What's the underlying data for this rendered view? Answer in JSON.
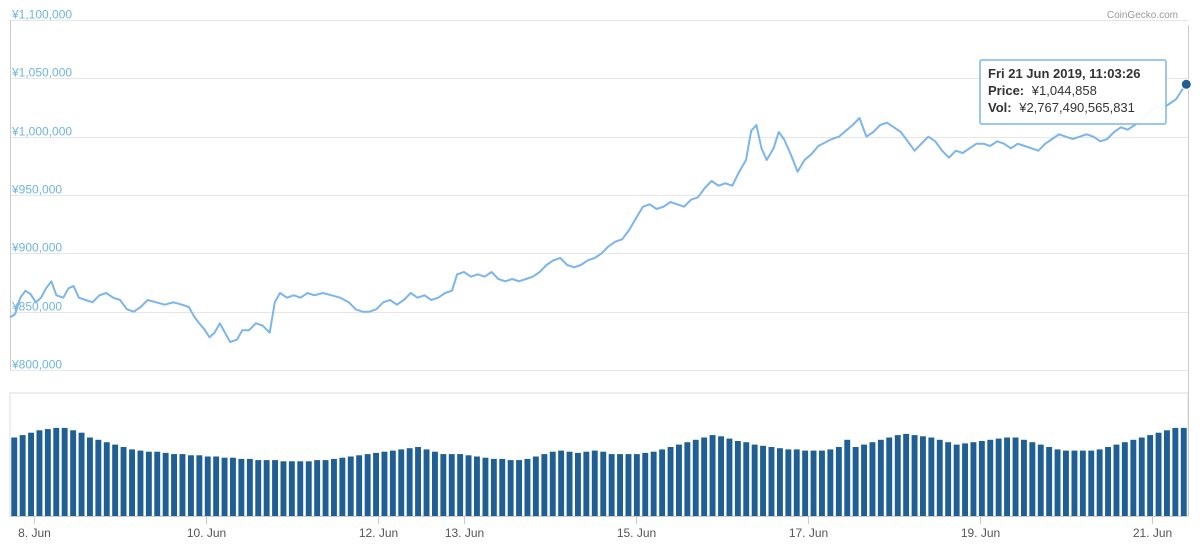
{
  "credits": "CoinGecko.com",
  "colors": {
    "line": "#7cb5ec",
    "volume": "#1f5f93",
    "grid": "#e6e6e6",
    "marker": "#1f5f93",
    "tooltip_border": "#7cb5ec"
  },
  "tooltip": {
    "date": "Fri 21 Jun 2019, 11:03:26",
    "price_label": "Price:",
    "price_value": "¥1,044,858",
    "vol_label": "Vol:",
    "vol_value": "¥2,767,490,565,831"
  },
  "chart_data": {
    "type": "line",
    "title": "",
    "xlabel": "",
    "ylabel": "",
    "x_ticks": [
      {
        "label": "8. Jun",
        "t": 1.0
      },
      {
        "label": "10. Jun",
        "t": 3.0
      },
      {
        "label": "12. Jun",
        "t": 5.0
      },
      {
        "label": "13. Jun",
        "t": 6.0
      },
      {
        "label": "15. Jun",
        "t": 8.0
      },
      {
        "label": "17. Jun",
        "t": 10.0
      },
      {
        "label": "19. Jun",
        "t": 12.0
      },
      {
        "label": "21. Jun",
        "t": 14.0
      }
    ],
    "x_range": [
      0.72,
      14.42
    ],
    "y_ticks": [
      "¥800,000",
      "¥850,000",
      "¥900,000",
      "¥950,000",
      "¥1,000,000",
      "¥1,050,000",
      "¥1,100,000"
    ],
    "y_tick_values": [
      800000,
      850000,
      900000,
      950000,
      1000000,
      1050000,
      1100000
    ],
    "ylim": [
      800000,
      1100000
    ],
    "series": [
      {
        "type": "line",
        "points": [
          [
            0.72,
            845000
          ],
          [
            0.78,
            848000
          ],
          [
            0.84,
            862000
          ],
          [
            0.9,
            868000
          ],
          [
            0.96,
            865000
          ],
          [
            1.02,
            858000
          ],
          [
            1.08,
            862000
          ],
          [
            1.14,
            870000
          ],
          [
            1.2,
            876000
          ],
          [
            1.26,
            864000
          ],
          [
            1.34,
            862000
          ],
          [
            1.4,
            870000
          ],
          [
            1.46,
            872000
          ],
          [
            1.52,
            862000
          ],
          [
            1.6,
            860000
          ],
          [
            1.68,
            858000
          ],
          [
            1.76,
            864000
          ],
          [
            1.84,
            866000
          ],
          [
            1.92,
            862000
          ],
          [
            2.0,
            860000
          ],
          [
            2.08,
            852000
          ],
          [
            2.16,
            850000
          ],
          [
            2.24,
            854000
          ],
          [
            2.32,
            860000
          ],
          [
            2.42,
            858000
          ],
          [
            2.52,
            856000
          ],
          [
            2.62,
            858000
          ],
          [
            2.72,
            856000
          ],
          [
            2.8,
            854000
          ],
          [
            2.86,
            846000
          ],
          [
            2.92,
            840000
          ],
          [
            2.98,
            835000
          ],
          [
            3.04,
            828000
          ],
          [
            3.1,
            832000
          ],
          [
            3.16,
            840000
          ],
          [
            3.22,
            832000
          ],
          [
            3.28,
            824000
          ],
          [
            3.36,
            826000
          ],
          [
            3.42,
            834000
          ],
          [
            3.5,
            834000
          ],
          [
            3.58,
            840000
          ],
          [
            3.66,
            838000
          ],
          [
            3.74,
            832000
          ],
          [
            3.8,
            858000
          ],
          [
            3.86,
            866000
          ],
          [
            3.94,
            862000
          ],
          [
            4.02,
            864000
          ],
          [
            4.1,
            862000
          ],
          [
            4.18,
            866000
          ],
          [
            4.26,
            864000
          ],
          [
            4.36,
            866000
          ],
          [
            4.46,
            864000
          ],
          [
            4.56,
            862000
          ],
          [
            4.66,
            858000
          ],
          [
            4.74,
            852000
          ],
          [
            4.82,
            850000
          ],
          [
            4.9,
            850000
          ],
          [
            4.98,
            852000
          ],
          [
            5.06,
            858000
          ],
          [
            5.14,
            860000
          ],
          [
            5.22,
            856000
          ],
          [
            5.3,
            860000
          ],
          [
            5.38,
            866000
          ],
          [
            5.46,
            862000
          ],
          [
            5.54,
            864000
          ],
          [
            5.62,
            860000
          ],
          [
            5.7,
            862000
          ],
          [
            5.78,
            866000
          ],
          [
            5.86,
            868000
          ],
          [
            5.92,
            882000
          ],
          [
            6.0,
            884000
          ],
          [
            6.08,
            880000
          ],
          [
            6.16,
            882000
          ],
          [
            6.24,
            880000
          ],
          [
            6.32,
            884000
          ],
          [
            6.4,
            878000
          ],
          [
            6.48,
            876000
          ],
          [
            6.56,
            878000
          ],
          [
            6.64,
            876000
          ],
          [
            6.72,
            878000
          ],
          [
            6.8,
            880000
          ],
          [
            6.88,
            884000
          ],
          [
            6.96,
            890000
          ],
          [
            7.04,
            894000
          ],
          [
            7.12,
            896000
          ],
          [
            7.2,
            890000
          ],
          [
            7.28,
            888000
          ],
          [
            7.36,
            890000
          ],
          [
            7.44,
            894000
          ],
          [
            7.52,
            896000
          ],
          [
            7.6,
            900000
          ],
          [
            7.68,
            906000
          ],
          [
            7.76,
            910000
          ],
          [
            7.84,
            912000
          ],
          [
            7.92,
            920000
          ],
          [
            8.0,
            930000
          ],
          [
            8.08,
            940000
          ],
          [
            8.16,
            942000
          ],
          [
            8.24,
            938000
          ],
          [
            8.32,
            940000
          ],
          [
            8.4,
            944000
          ],
          [
            8.48,
            942000
          ],
          [
            8.56,
            940000
          ],
          [
            8.64,
            946000
          ],
          [
            8.72,
            948000
          ],
          [
            8.8,
            956000
          ],
          [
            8.88,
            962000
          ],
          [
            8.96,
            958000
          ],
          [
            9.04,
            960000
          ],
          [
            9.12,
            958000
          ],
          [
            9.2,
            970000
          ],
          [
            9.28,
            980000
          ],
          [
            9.34,
            1005000
          ],
          [
            9.4,
            1010000
          ],
          [
            9.46,
            990000
          ],
          [
            9.52,
            980000
          ],
          [
            9.6,
            990000
          ],
          [
            9.66,
            1004000
          ],
          [
            9.72,
            998000
          ],
          [
            9.8,
            985000
          ],
          [
            9.88,
            970000
          ],
          [
            9.96,
            980000
          ],
          [
            10.04,
            985000
          ],
          [
            10.12,
            992000
          ],
          [
            10.2,
            995000
          ],
          [
            10.28,
            998000
          ],
          [
            10.36,
            1000000
          ],
          [
            10.44,
            1005000
          ],
          [
            10.52,
            1010000
          ],
          [
            10.6,
            1016000
          ],
          [
            10.68,
            1000000
          ],
          [
            10.76,
            1004000
          ],
          [
            10.84,
            1010000
          ],
          [
            10.92,
            1012000
          ],
          [
            11.0,
            1008000
          ],
          [
            11.08,
            1004000
          ],
          [
            11.16,
            996000
          ],
          [
            11.24,
            988000
          ],
          [
            11.32,
            994000
          ],
          [
            11.4,
            1000000
          ],
          [
            11.48,
            996000
          ],
          [
            11.56,
            988000
          ],
          [
            11.64,
            982000
          ],
          [
            11.72,
            988000
          ],
          [
            11.8,
            986000
          ],
          [
            11.88,
            990000
          ],
          [
            11.96,
            994000
          ],
          [
            12.04,
            994000
          ],
          [
            12.12,
            992000
          ],
          [
            12.2,
            996000
          ],
          [
            12.28,
            994000
          ],
          [
            12.36,
            990000
          ],
          [
            12.44,
            994000
          ],
          [
            12.52,
            992000
          ],
          [
            12.6,
            990000
          ],
          [
            12.68,
            988000
          ],
          [
            12.76,
            994000
          ],
          [
            12.84,
            998000
          ],
          [
            12.92,
            1002000
          ],
          [
            13.0,
            1000000
          ],
          [
            13.08,
            998000
          ],
          [
            13.16,
            1000000
          ],
          [
            13.24,
            1002000
          ],
          [
            13.32,
            1000000
          ],
          [
            13.4,
            996000
          ],
          [
            13.48,
            998000
          ],
          [
            13.56,
            1004000
          ],
          [
            13.64,
            1008000
          ],
          [
            13.72,
            1006000
          ],
          [
            13.8,
            1010000
          ],
          [
            13.88,
            1014000
          ],
          [
            13.96,
            1020000
          ],
          [
            14.04,
            1026000
          ],
          [
            14.12,
            1024000
          ],
          [
            14.2,
            1028000
          ],
          [
            14.28,
            1032000
          ],
          [
            14.35,
            1040000
          ],
          [
            14.4,
            1044858
          ]
        ]
      },
      {
        "type": "bar",
        "name": "Vol",
        "relative_heights": [
          0.66,
          0.68,
          0.7,
          0.72,
          0.73,
          0.74,
          0.74,
          0.72,
          0.7,
          0.66,
          0.64,
          0.62,
          0.6,
          0.58,
          0.56,
          0.55,
          0.54,
          0.54,
          0.53,
          0.52,
          0.52,
          0.51,
          0.51,
          0.5,
          0.5,
          0.49,
          0.49,
          0.48,
          0.48,
          0.47,
          0.47,
          0.47,
          0.46,
          0.46,
          0.46,
          0.46,
          0.47,
          0.47,
          0.48,
          0.49,
          0.5,
          0.51,
          0.52,
          0.53,
          0.54,
          0.55,
          0.56,
          0.57,
          0.58,
          0.56,
          0.54,
          0.52,
          0.52,
          0.52,
          0.51,
          0.5,
          0.49,
          0.48,
          0.48,
          0.47,
          0.47,
          0.48,
          0.5,
          0.52,
          0.54,
          0.55,
          0.54,
          0.53,
          0.54,
          0.55,
          0.54,
          0.52,
          0.52,
          0.52,
          0.52,
          0.53,
          0.54,
          0.56,
          0.58,
          0.6,
          0.62,
          0.64,
          0.66,
          0.68,
          0.67,
          0.65,
          0.63,
          0.62,
          0.6,
          0.59,
          0.58,
          0.57,
          0.56,
          0.56,
          0.55,
          0.55,
          0.55,
          0.56,
          0.58,
          0.64,
          0.58,
          0.6,
          0.62,
          0.64,
          0.66,
          0.68,
          0.69,
          0.68,
          0.67,
          0.66,
          0.64,
          0.62,
          0.6,
          0.61,
          0.62,
          0.63,
          0.64,
          0.65,
          0.66,
          0.66,
          0.64,
          0.62,
          0.6,
          0.58,
          0.56,
          0.55,
          0.55,
          0.55,
          0.55,
          0.56,
          0.58,
          0.6,
          0.62,
          0.64,
          0.66,
          0.68,
          0.7,
          0.72,
          0.74,
          0.74
        ]
      }
    ],
    "highlighted_point": {
      "x": 14.4,
      "y": 1044858
    }
  }
}
